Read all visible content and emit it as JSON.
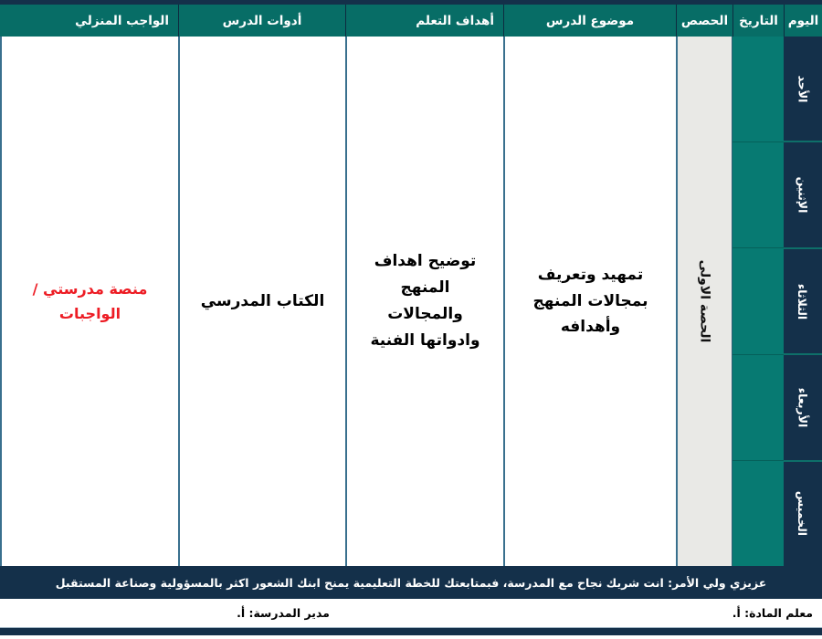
{
  "colors": {
    "navy": "#14304a",
    "header_teal": "#076d66",
    "date_column_teal": "#077a72",
    "period_gray": "#e9e9e6",
    "cell_border_blue": "#39708e",
    "homework_red": "#ed1c24"
  },
  "header": {
    "columns": [
      {
        "key": "day",
        "label": "اليوم"
      },
      {
        "key": "date",
        "label": "التاريخ"
      },
      {
        "key": "periods",
        "label": "الحصص"
      },
      {
        "key": "topic",
        "label": "موضوع الدرس"
      },
      {
        "key": "goals",
        "label": "أهداف التعلم"
      },
      {
        "key": "tools",
        "label": "أدوات الدرس"
      },
      {
        "key": "homework",
        "label": "الواجب المنزلي"
      }
    ]
  },
  "days": [
    "الأحد",
    "الإثنين",
    "الثلاثاء",
    "الأربعاء",
    "الخميس"
  ],
  "body": {
    "period": "الحصة الاولى",
    "topic": "تمهيد وتعريف بمجالات المنهج وأهدافه",
    "goals": "توضيح اهداف المنهج والمجالات وادواتها الفنية",
    "tools": "الكتاب المدرسي",
    "homework": "منصة مدرستي / الواجبات"
  },
  "message": "عزيزي ولي الأمر: انت شريك نجاح مع المدرسة، فبمتابعتك للخطة التعليمية يمنح ابنك الشعور اكثر بالمسؤولية وصناعة المستقبل",
  "footer": {
    "teacher": "معلم المادة: أ.",
    "principal": "مدير المدرسة: أ."
  }
}
